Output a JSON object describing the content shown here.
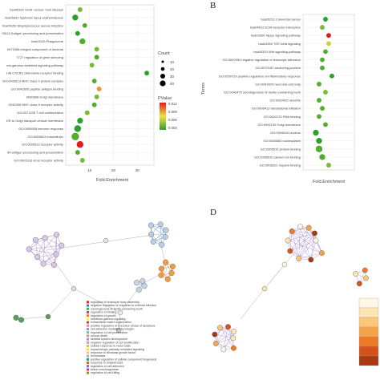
{
  "panels": {
    "b": "B",
    "d": "D"
  },
  "chart_data": [
    {
      "type": "scatter",
      "xlabel": "Fold.Enrichment",
      "x_ticks": [
        "10",
        "20",
        "30"
      ],
      "xlim": [
        0,
        37
      ],
      "categories": [
        "hsa05332 Graft- versus- host disease",
        "hsa05322 Systemic lupus erythematosus",
        "hsa05150 Staphylococcus aureus infection",
        "05112 Antigen processing and presentation",
        "hsa04145 Phagosome",
        "0071556 integral component of lumenal",
        "7727 regulation of gene silencing",
        "ma-gamma-mediated signaling pathway",
        "146 CXCR3 chemokine receptor binding",
        "GO:0042613 MHC class II protein complex",
        "GO:0042605 peptide antigen binding",
        "0030658 Golgi membrane",
        "0032395 MHC class II receptor activity",
        "GO:0071205 T cell costimulation",
        "ER to Golgi transport vesicle membrane",
        "GO:0006955 immune response",
        "GO:0005623 intracellular",
        "GO:0005612 receptor activity",
        "04 antigen processing and presentation",
        "GO:0001916 virus receptor activity"
      ],
      "x": [
        6,
        4,
        8,
        5,
        7,
        13,
        13,
        11,
        34,
        12,
        14,
        13,
        12,
        9,
        6,
        5,
        4,
        6,
        5,
        7
      ],
      "count": [
        10,
        20,
        10,
        10,
        20,
        10,
        10,
        10,
        10,
        10,
        10,
        10,
        10,
        10,
        20,
        30,
        40,
        30,
        10,
        10
      ],
      "pvalue": [
        0.004,
        0.002,
        0.003,
        0.002,
        0.003,
        0.004,
        0.003,
        0.004,
        0.002,
        0.003,
        0.009,
        0.004,
        0.003,
        0.004,
        0.002,
        0.002,
        0.003,
        0.012,
        0.003,
        0.004
      ],
      "legend_count_title": "Count",
      "legend_count_values": [
        "10",
        "20",
        "30",
        "40"
      ],
      "legend_p_title": "PValue",
      "legend_p_ticks": [
        "0.012",
        "0.009",
        "0.006",
        "0.003"
      ],
      "colors": {
        "high": "#e41a1c",
        "mid": "#f0e442",
        "low": "#2ca02c"
      }
    },
    {
      "type": "scatter",
      "ylabel": "Terms",
      "xlabel": "Fold.Enrichment",
      "categories": [
        "hsa05210 Colorectal cancer",
        "hsa04512 ECM-receptor interaction",
        "hsa04390 Hippo signaling pathway",
        "hsa04350 TGF-beta signaling",
        "hsa04310 Wnt signaling pathway",
        "GO:0000904 negative regulation of leukocyte adhesion",
        "GO:0070161 anchoring junction",
        "GO:0050729 positive regulation of inflammatory response",
        "GO:0043025 neuronal cell body",
        "GO:0042475 odontogenesis of dentin-containing tooth",
        "GO:0030425 dendrite",
        "GO:0006413 translational initiation",
        "GO:0003723 RNA binding",
        "GO:0000139 Golgi membrane",
        "GO:0005634 nucleus",
        "GO:0005654 nucleoplasm",
        "GO:0005515 protein binding",
        "GO:0005509 calcium ion binding",
        "GO:0008201 heparin binding"
      ],
      "x": [
        3.5,
        3.0,
        4.0,
        4.0,
        3.5,
        3.0,
        3.0,
        4.5,
        2.5,
        3.5,
        2.5,
        3.0,
        2.5,
        3.5,
        2.0,
        2.5,
        2.5,
        3.0,
        4.0
      ],
      "count": [
        10,
        10,
        10,
        10,
        10,
        10,
        10,
        10,
        10,
        10,
        10,
        10,
        10,
        10,
        20,
        20,
        30,
        20,
        10
      ],
      "pvalue": [
        0.002,
        0.004,
        0.012,
        0.006,
        0.003,
        0.003,
        0.003,
        0.002,
        0.003,
        0.004,
        0.003,
        0.003,
        0.003,
        0.003,
        0.002,
        0.002,
        0.003,
        0.003,
        0.004
      ],
      "xlim": [
        0,
        8
      ]
    },
    {
      "type": "network",
      "legend": [
        {
          "label": "regulation of leukocyte body assembly",
          "color": "#e41a1c"
        },
        {
          "label": "negative regulation of response to external stimulus",
          "color": "#377eb8"
        },
        {
          "label": "odontogenesis of dentin-containing tooth",
          "color": "#4daf4a"
        },
        {
          "label": "regulation of binding",
          "color": "#984ea3"
        },
        {
          "label": "regulation of growth",
          "color": "#ff7f00"
        },
        {
          "label": "interferon-gamma signaling",
          "color": "#ffff33"
        },
        {
          "label": "extracellular matrix organization",
          "color": "#a65628"
        },
        {
          "label": "positive regulation of execution phase of apoptosis",
          "color": "#f781bf"
        },
        {
          "label": "cell adhesion mediated by integrin",
          "color": "#999999"
        },
        {
          "label": "regulation of cell proliferation",
          "color": "#66c2a5"
        },
        {
          "label": "neuron death",
          "color": "#fc8d62"
        },
        {
          "label": "skeletal system development",
          "color": "#8da0cb"
        },
        {
          "label": "negative regulation of cell proliferation",
          "color": "#e78ac3"
        },
        {
          "label": "cellular response to redox state",
          "color": "#a6d854"
        },
        {
          "label": "dopaminergic pathway mediated signaling",
          "color": "#ffd92f"
        },
        {
          "label": "response to fibroblast growth factor",
          "color": "#e5c494"
        },
        {
          "label": "hemostasis",
          "color": "#b3b3b3"
        },
        {
          "label": "positive regulation of cellular component biogenesis",
          "color": "#1b9e77"
        },
        {
          "label": "response to amyloid-beta",
          "color": "#d95f02"
        },
        {
          "label": "regulation of cell adhesion",
          "color": "#7570b3"
        },
        {
          "label": "tissue morphogenesis",
          "color": "#e7298a"
        },
        {
          "label": "regulation of cell killing",
          "color": "#66a61e"
        }
      ]
    },
    {
      "type": "network",
      "colorbar": [
        "#fff7e6",
        "#fde4b4",
        "#fdc77a",
        "#f8a34a",
        "#ee7a26",
        "#d4531a",
        "#a93a10"
      ]
    }
  ]
}
